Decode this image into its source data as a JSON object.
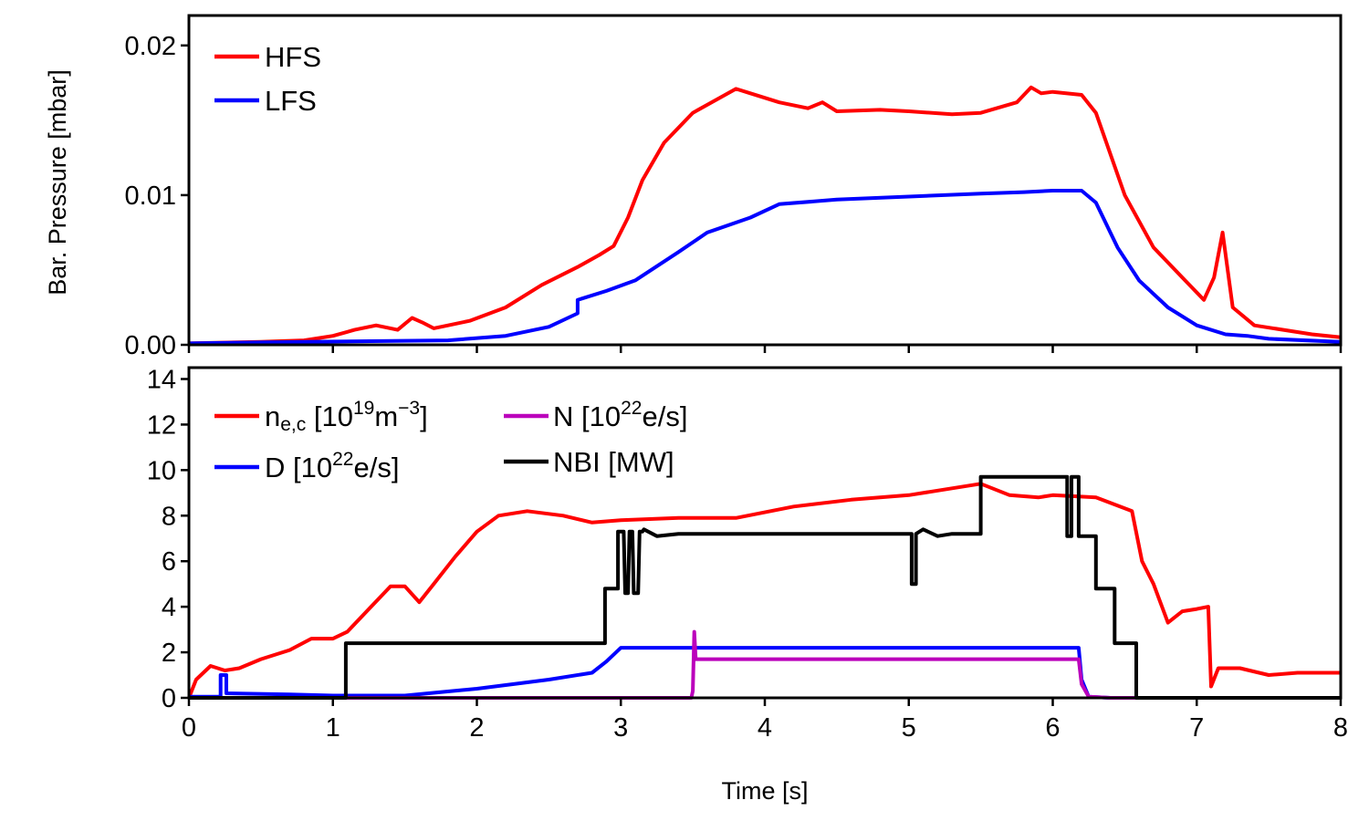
{
  "chart_data": [
    {
      "type": "line",
      "ylabel": "Bar. Pressure [mbar]",
      "xlim": [
        0,
        8
      ],
      "ylim": [
        0,
        0.022
      ],
      "yticks": [
        0.0,
        0.01,
        0.02
      ],
      "ytick_labels": [
        "0.00",
        "0.01",
        "0.02"
      ],
      "xticks": [
        0,
        1,
        2,
        3,
        4,
        5,
        6,
        7,
        8
      ],
      "show_xtick_labels": false,
      "grid": false,
      "legend_position": "top-left",
      "series": [
        {
          "name": "HFS",
          "color": "#ff0000",
          "x": [
            0,
            0.5,
            0.8,
            1.0,
            1.15,
            1.3,
            1.45,
            1.55,
            1.62,
            1.7,
            1.8,
            1.95,
            2.2,
            2.45,
            2.7,
            2.85,
            2.95,
            3.05,
            3.15,
            3.3,
            3.5,
            3.65,
            3.8,
            3.9,
            4.1,
            4.3,
            4.4,
            4.5,
            4.8,
            5.0,
            5.3,
            5.5,
            5.75,
            5.85,
            5.92,
            6.0,
            6.2,
            6.3,
            6.5,
            6.7,
            6.9,
            7.05,
            7.12,
            7.18,
            7.25,
            7.4,
            7.8,
            8.0
          ],
          "y": [
            0.0001,
            0.0002,
            0.0003,
            0.0006,
            0.001,
            0.0013,
            0.001,
            0.0018,
            0.0015,
            0.0011,
            0.0013,
            0.0016,
            0.0025,
            0.004,
            0.0052,
            0.006,
            0.0066,
            0.0085,
            0.011,
            0.0135,
            0.0155,
            0.0163,
            0.0171,
            0.0168,
            0.0162,
            0.0158,
            0.0162,
            0.0156,
            0.0157,
            0.0156,
            0.0154,
            0.0155,
            0.0162,
            0.0172,
            0.0168,
            0.0169,
            0.0167,
            0.0155,
            0.01,
            0.0065,
            0.0045,
            0.003,
            0.0045,
            0.0075,
            0.0025,
            0.0013,
            0.0007,
            0.0005
          ]
        },
        {
          "name": "LFS",
          "color": "#0000ff",
          "x": [
            0,
            0.8,
            1.8,
            2.2,
            2.5,
            2.7,
            2.7,
            2.9,
            3.1,
            3.4,
            3.6,
            3.9,
            4.1,
            4.5,
            5.0,
            5.5,
            5.8,
            6.0,
            6.2,
            6.3,
            6.45,
            6.6,
            6.8,
            7.0,
            7.2,
            7.35,
            7.5,
            8.0
          ],
          "y": [
            0.0001,
            0.0002,
            0.0003,
            0.0006,
            0.0012,
            0.0021,
            0.003,
            0.0036,
            0.0043,
            0.0062,
            0.0075,
            0.0085,
            0.0094,
            0.0097,
            0.0099,
            0.0101,
            0.0102,
            0.0103,
            0.0103,
            0.0095,
            0.0065,
            0.0043,
            0.0025,
            0.0013,
            0.0007,
            0.0006,
            0.0004,
            0.0002
          ]
        }
      ]
    },
    {
      "type": "line",
      "xlabel": "Time [s]",
      "xlim": [
        0,
        8
      ],
      "ylim": [
        0,
        14.5
      ],
      "yticks": [
        0,
        2,
        4,
        6,
        8,
        10,
        12,
        14
      ],
      "xticks": [
        0,
        1,
        2,
        3,
        4,
        5,
        6,
        7,
        8
      ],
      "grid": false,
      "legend_position": "top-left",
      "series": [
        {
          "name": "n",
          "name_sub": "e,c",
          "name_rest": " [10",
          "name_sup1": "19",
          "name_rest2": "m",
          "name_sup2": "−3",
          "name_end": "]",
          "color": "#ff0000",
          "x": [
            0,
            0.05,
            0.15,
            0.25,
            0.35,
            0.5,
            0.7,
            0.85,
            1.0,
            1.1,
            1.25,
            1.4,
            1.5,
            1.6,
            1.7,
            1.85,
            2.0,
            2.15,
            2.35,
            2.6,
            2.8,
            3.0,
            3.4,
            3.8,
            4.2,
            4.6,
            5.0,
            5.3,
            5.5,
            5.7,
            5.9,
            6.0,
            6.3,
            6.55,
            6.62,
            6.7,
            6.8,
            6.9,
            7.0,
            7.08,
            7.1,
            7.15,
            7.3,
            7.5,
            7.7,
            8.0
          ],
          "y": [
            0,
            0.8,
            1.4,
            1.2,
            1.3,
            1.7,
            2.1,
            2.6,
            2.6,
            2.9,
            3.9,
            4.9,
            4.9,
            4.2,
            5.0,
            6.2,
            7.3,
            8.0,
            8.2,
            8.0,
            7.7,
            7.8,
            7.9,
            7.9,
            8.4,
            8.7,
            8.9,
            9.2,
            9.4,
            8.9,
            8.8,
            8.9,
            8.8,
            8.2,
            6.0,
            5.0,
            3.3,
            3.8,
            3.9,
            4.0,
            0.5,
            1.3,
            1.3,
            1.0,
            1.1,
            1.1
          ]
        },
        {
          "name": "D",
          "name_rest": " [10",
          "name_sup1": "22",
          "name_end": "e/s]",
          "color": "#0000ff",
          "x": [
            0,
            0.22,
            0.22,
            0.26,
            0.26,
            0.7,
            1.0,
            1.5,
            2.0,
            2.5,
            2.8,
            2.9,
            3.0,
            3.5,
            4.0,
            5.0,
            6.0,
            6.18,
            6.2,
            6.25,
            6.4,
            8.0
          ],
          "y": [
            0.05,
            0.05,
            1.0,
            1.0,
            0.2,
            0.15,
            0.1,
            0.1,
            0.4,
            0.8,
            1.1,
            1.6,
            2.2,
            2.2,
            2.2,
            2.2,
            2.2,
            2.2,
            0.8,
            0.05,
            0.0,
            0.0
          ]
        },
        {
          "name": "N",
          "name_rest": " [10",
          "name_sup1": "22",
          "name_end": "e/s]",
          "color": "#bb00bb",
          "x": [
            0,
            3.49,
            3.5,
            3.51,
            3.52,
            3.55,
            4.0,
            5.0,
            6.0,
            6.18,
            6.2,
            6.25,
            6.4,
            8.0
          ],
          "y": [
            0.0,
            0.0,
            0.3,
            2.9,
            1.7,
            1.7,
            1.7,
            1.7,
            1.7,
            1.7,
            0.6,
            0.05,
            0.0,
            0.0
          ]
        },
        {
          "name": "NBI [MW]",
          "color": "#000000",
          "x": [
            0,
            1.09,
            1.09,
            2.89,
            2.89,
            2.98,
            2.98,
            3.02,
            3.03,
            3.05,
            3.06,
            3.08,
            3.09,
            3.12,
            3.13,
            3.15,
            3.16,
            3.25,
            3.4,
            4.0,
            5.02,
            5.02,
            5.05,
            5.05,
            5.1,
            5.2,
            5.3,
            5.5,
            5.5,
            6.1,
            6.1,
            6.13,
            6.13,
            6.18,
            6.18,
            6.2,
            6.2,
            6.3,
            6.3,
            6.43,
            6.43,
            6.58,
            6.58,
            8.0
          ],
          "y": [
            0,
            0,
            2.4,
            2.4,
            4.8,
            4.8,
            7.3,
            7.3,
            4.6,
            4.6,
            7.3,
            7.3,
            4.6,
            4.6,
            7.3,
            7.3,
            7.4,
            7.1,
            7.2,
            7.2,
            7.2,
            5.0,
            5.0,
            7.2,
            7.4,
            7.1,
            7.2,
            7.2,
            9.7,
            9.7,
            7.1,
            7.1,
            9.7,
            9.7,
            7.1,
            7.1,
            7.1,
            7.1,
            4.8,
            4.8,
            2.4,
            2.4,
            0,
            0
          ]
        }
      ]
    }
  ]
}
